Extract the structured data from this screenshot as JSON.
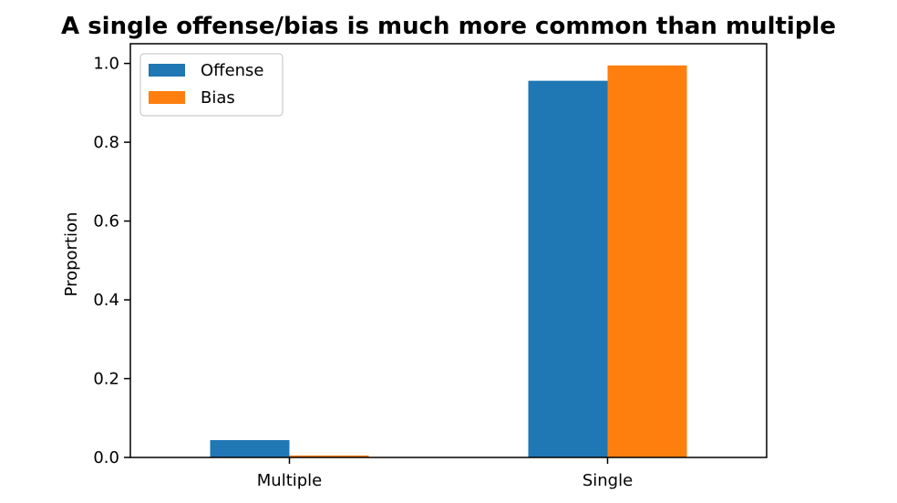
{
  "chart_data": {
    "type": "bar",
    "title": "A single offense/bias is much more common than multiple",
    "xlabel": "",
    "ylabel": "Proportion",
    "categories": [
      "Multiple",
      "Single"
    ],
    "series": [
      {
        "name": "Offense",
        "color": "#1f77b4",
        "values": [
          0.044,
          0.956
        ]
      },
      {
        "name": "Bias",
        "color": "#ff7f0e",
        "values": [
          0.005,
          0.995
        ]
      }
    ],
    "ylim": [
      0,
      1.05
    ],
    "yticks": [
      "0.0",
      "0.2",
      "0.4",
      "0.6",
      "0.8",
      "1.0"
    ],
    "grid": false,
    "legend_position": "top-left"
  }
}
